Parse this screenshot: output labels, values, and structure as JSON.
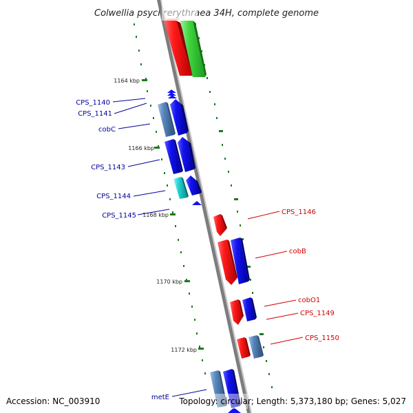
{
  "title": "Colwellia psychrerythraea 34H, complete genome",
  "accession": "Accession: NC_003910",
  "topology": "Topology: circular; Length: 5,373,180 bp; Genes: 5,027",
  "kbp_labels": [
    "1164 kbp",
    "1166 kbp",
    "1168 kbp",
    "1170 kbp",
    "1172 kbp"
  ],
  "left_genes": [
    "CPS_1140",
    "CPS_1141",
    "cobC",
    "CPS_1143",
    "CPS_1144",
    "CPS_1145",
    "metE"
  ],
  "right_genes": [
    "CPS_1146",
    "cobB",
    "cobO1",
    "CPS_1149",
    "CPS_1150"
  ],
  "colors": {
    "red": "#ee1111",
    "green": "#33cc33",
    "blue": "#1010ee",
    "steelblue": "#4a7ab0",
    "cyan": "#11c8c8",
    "tick": "#1a7a1a",
    "backbone": "#888888",
    "left_label": "#00009e",
    "right_label": "#cc0000"
  }
}
